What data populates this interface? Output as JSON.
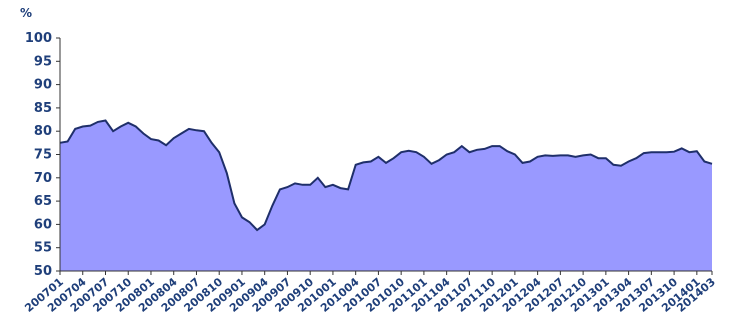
{
  "chart_data": {
    "type": "area",
    "ylabel": "%",
    "ylim": [
      50,
      100
    ],
    "yticks": [
      50,
      55,
      60,
      65,
      70,
      75,
      80,
      85,
      90,
      95,
      100
    ],
    "grid": false,
    "legend": "none",
    "x_tick_labels": [
      "200701",
      "200704",
      "200707",
      "200710",
      "200801",
      "200804",
      "200807",
      "200810",
      "200901",
      "200904",
      "200907",
      "200910",
      "201001",
      "201004",
      "201007",
      "201010",
      "201101",
      "201104",
      "201107",
      "201110",
      "201201",
      "201204",
      "201207",
      "201210",
      "201301",
      "201304",
      "201307",
      "201310",
      "201401",
      "201403"
    ],
    "series": [
      {
        "color": "#9999ff",
        "line_color": "#1f2f6a",
        "x": [
          "200701",
          "200702",
          "200703",
          "200704",
          "200705",
          "200706",
          "200707",
          "200708",
          "200709",
          "200710",
          "200711",
          "200712",
          "200801",
          "200802",
          "200803",
          "200804",
          "200805",
          "200806",
          "200807",
          "200808",
          "200809",
          "200810",
          "200811",
          "200812",
          "200901",
          "200902",
          "200903",
          "200904",
          "200905",
          "200906",
          "200907",
          "200908",
          "200909",
          "200910",
          "200911",
          "200912",
          "201001",
          "201002",
          "201003",
          "201004",
          "201005",
          "201006",
          "201007",
          "201008",
          "201009",
          "201010",
          "201011",
          "201012",
          "201101",
          "201102",
          "201103",
          "201104",
          "201105",
          "201106",
          "201107",
          "201108",
          "201109",
          "201110",
          "201111",
          "201112",
          "201201",
          "201202",
          "201203",
          "201204",
          "201205",
          "201206",
          "201207",
          "201208",
          "201209",
          "201210",
          "201211",
          "201212",
          "201301",
          "201302",
          "201303",
          "201304",
          "201305",
          "201306",
          "201307",
          "201308",
          "201309",
          "201310",
          "201311",
          "201312",
          "201401",
          "201402",
          "201403"
        ],
        "values": [
          77.5,
          77.8,
          80.5,
          81.0,
          81.2,
          82.0,
          82.3,
          80.0,
          81.0,
          81.8,
          81.0,
          79.5,
          78.3,
          78.0,
          77.0,
          78.5,
          79.5,
          80.5,
          80.2,
          80.0,
          77.5,
          75.5,
          71.0,
          64.5,
          61.5,
          60.5,
          58.8,
          60.0,
          64.0,
          67.5,
          68.0,
          68.8,
          68.5,
          68.5,
          70.0,
          68.0,
          68.5,
          67.8,
          67.5,
          72.8,
          73.3,
          73.5,
          74.5,
          73.2,
          74.2,
          75.5,
          75.8,
          75.5,
          74.5,
          73.0,
          73.8,
          75.0,
          75.5,
          76.8,
          75.5,
          76.0,
          76.2,
          76.8,
          76.8,
          75.7,
          75.0,
          73.2,
          73.5,
          74.5,
          74.8,
          74.7,
          74.8,
          74.8,
          74.5,
          74.8,
          75.0,
          74.2,
          74.2,
          72.8,
          72.6,
          73.5,
          74.2,
          75.3,
          75.5,
          75.5,
          75.5,
          75.6,
          76.3,
          75.5,
          75.7,
          73.5,
          73.0
        ]
      }
    ]
  }
}
